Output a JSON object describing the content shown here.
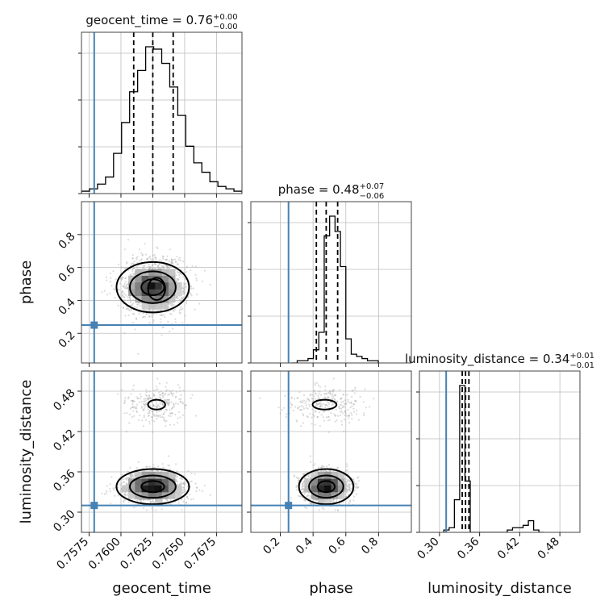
{
  "chart_data": {
    "type": "corner",
    "truth_color": "#4682b4",
    "parameters": [
      {
        "name": "geocent_time",
        "truth": 0.7579,
        "range": [
          0.7569,
          0.7695
        ],
        "ticks": [
          0.7575,
          0.76,
          0.7625,
          0.765,
          0.7675
        ],
        "tick_labels": [
          "0.7575",
          "0.7600",
          "0.7625",
          "0.7650",
          "0.7675"
        ],
        "title_main": "geocent_time = 0.76",
        "title_sup": "+0.00",
        "title_sub": "−0.00",
        "quantiles": [
          0.761,
          0.7625,
          0.7641
        ],
        "hist_edges_start": 0.7569,
        "hist_bin": 0.00063,
        "hist_counts": [
          1,
          2,
          4,
          7,
          17,
          30,
          43,
          52,
          62,
          61,
          55,
          45,
          33,
          20,
          13,
          9,
          5,
          3,
          2,
          1
        ]
      },
      {
        "name": "phase",
        "truth": 0.25,
        "range": [
          0.02,
          1.0
        ],
        "ticks": [
          0.2,
          0.4,
          0.6,
          0.8
        ],
        "tick_labels": [
          "0.2",
          "0.4",
          "0.6",
          "0.8"
        ],
        "title_main": "phase = 0.48",
        "title_sup": "+0.07",
        "title_sub": "−0.06",
        "quantiles": [
          0.42,
          0.48,
          0.55
        ],
        "hist_edges_start": 0.27,
        "hist_bin": 0.033,
        "hist_counts": [
          0,
          1,
          1,
          2,
          6,
          14,
          58,
          67,
          60,
          44,
          11,
          4,
          3,
          2,
          1,
          1
        ]
      },
      {
        "name": "luminosity_distance",
        "truth": 0.31,
        "range": [
          0.27,
          0.51
        ],
        "ticks": [
          0.3,
          0.36,
          0.42,
          0.48
        ],
        "tick_labels": [
          "0.30",
          "0.36",
          "0.42",
          "0.48"
        ],
        "title_main": "luminosity_distance = 0.34",
        "title_sup": "+0.01",
        "title_sub": "−0.01",
        "quantiles": [
          0.334,
          0.339,
          0.344
        ],
        "hist_edges_start": 0.3065,
        "hist_bin": 0.0079,
        "hist_counts": [
          1,
          2,
          14,
          63,
          22,
          0,
          0,
          0,
          0,
          0,
          0,
          0,
          1,
          2,
          2,
          3,
          5,
          1,
          0
        ]
      }
    ],
    "modes": [
      {
        "weight": 0.84,
        "mean": [
          0.7625,
          0.48,
          0.338
        ],
        "sd": [
          0.0012,
          0.07,
          0.012
        ]
      },
      {
        "weight": 0.16,
        "mean": [
          0.7628,
          0.47,
          0.46
        ],
        "sd": [
          0.0012,
          0.13,
          0.014
        ]
      }
    ]
  }
}
